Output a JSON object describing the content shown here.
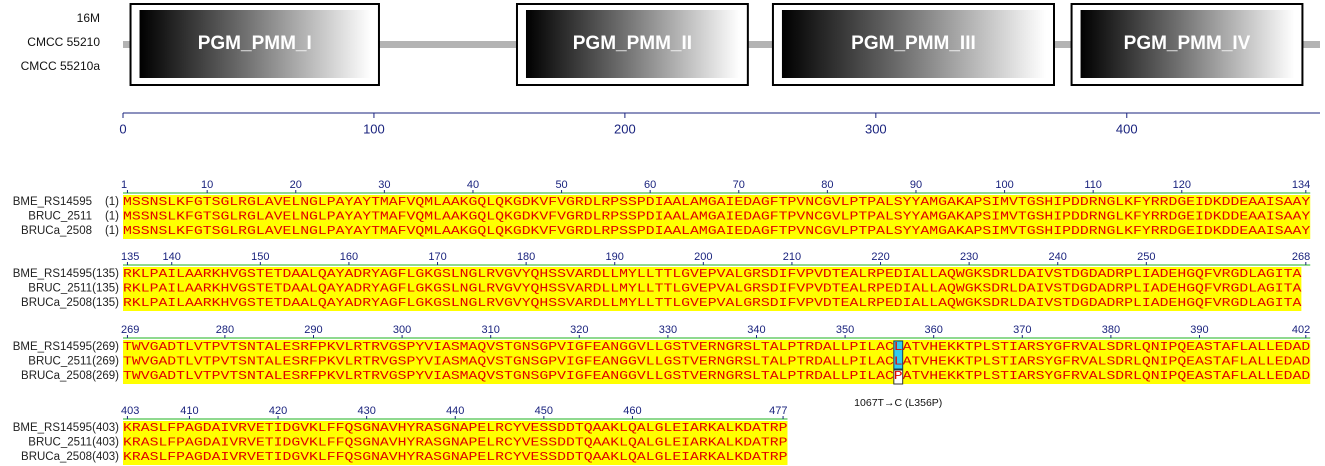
{
  "domain_map": {
    "strains": [
      "16M",
      "CMCC 55210",
      "CMCC 55210a"
    ],
    "domains": [
      {
        "label": "PGM_PMM_I",
        "start": 3,
        "end": 102
      },
      {
        "label": "PGM_PMM_II",
        "start": 157,
        "end": 249
      },
      {
        "label": "PGM_PMM_III",
        "start": 259,
        "end": 371
      },
      {
        "label": "PGM_PMM_IV",
        "start": 378,
        "end": 470
      }
    ],
    "axis_ticks": [
      0,
      100,
      200,
      300,
      400
    ]
  },
  "alignment": {
    "blocks": [
      {
        "ruler": [
          1,
          10,
          20,
          30,
          40,
          50,
          60,
          70,
          80,
          90,
          100,
          110,
          120,
          134
        ],
        "rows": [
          {
            "name": "BME_RS14595",
            "start": "(1)",
            "seq": "MSSNSLKFGTSGLRGLAVELNGLPAYAYTMAFVQMLAAKGQLQKGDKVFVGRDLRPSSPDIAALAMGAIEDAGFTPVNCGVLPTPALSYYAMGAKAPSIMVTGSHIPDDRNGLKFYRRDGEIDKDDEAAISAAY"
          },
          {
            "name": "BRUC_2511",
            "start": "(1)",
            "seq": "MSSNSLKFGTSGLRGLAVELNGLPAYAYTMAFVQMLAAKGQLQKGDKVFVGRDLRPSSPDIAALAMGAIEDAGFTPVNCGVLPTPALSYYAMGAKAPSIMVTGSHIPDDRNGLKFYRRDGEIDKDDEAAISAAY"
          },
          {
            "name": "BRUCa_2508",
            "start": "(1)",
            "seq": "MSSNSLKFGTSGLRGLAVELNGLPAYAYTMAFVQMLAAKGQLQKGDKVFVGRDLRPSSPDIAALAMGAIEDAGFTPVNCGVLPTPALSYYAMGAKAPSIMVTGSHIPDDRNGLKFYRRDGEIDKDDEAAISAAY"
          }
        ]
      },
      {
        "ruler": [
          135,
          140,
          150,
          160,
          170,
          180,
          190,
          200,
          210,
          220,
          230,
          240,
          250,
          268
        ],
        "rows": [
          {
            "name": "BME_RS14595",
            "start": "(135)",
            "seq": "RKLPAILAARKHVGSTETDAALQAYADRYAGFLGKGSLNGLRVGVYQHSSVARDLLMYLLTTLGVEPVALGRSDIFVPVDTEALRPEDIALLAQWGKSDRLDAIVSTDGDADRPLIADEHGQFVRGDLAGITA"
          },
          {
            "name": "BRUC_2511",
            "start": "(135)",
            "seq": "RKLPAILAARKHVGSTETDAALQAYADRYAGFLGKGSLNGLRVGVYQHSSVARDLLMYLLTTLGVEPVALGRSDIFVPVDTEALRPEDIALLAQWGKSDRLDAIVSTDGDADRPLIADEHGQFVRGDLAGITA"
          },
          {
            "name": "BRUCa_2508",
            "start": "(135)",
            "seq": "RKLPAILAARKHVGSTETDAALQAYADRYAGFLGKGSLNGLRVGVYQHSSVARDLLMYLLTTLGVEPVALGRSDIFVPVDTEALRPEDIALLAQWGKSDRLDAIVSTDGDADRPLIADEHGQFVRGDLAGITA"
          }
        ]
      },
      {
        "ruler": [
          269,
          280,
          290,
          300,
          310,
          320,
          330,
          340,
          350,
          360,
          370,
          380,
          390,
          402
        ],
        "rows": [
          {
            "name": "BME_RS14595",
            "start": "(269)",
            "seq": "TWVGADTLVTPVTSNTALESRFPKVLRTRVGSPYVIASMAQVSTGNSGPVIGFEANGGVLLGSTVERNGRSLTALPTRDALLPILACLATVHEKKTPLSTIARSYGFRVALSDRLQNIPQEASTAFLALLEDAD"
          },
          {
            "name": "BRUC_2511",
            "start": "(269)",
            "seq": "TWVGADTLVTPVTSNTALESRFPKVLRTRVGSPYVIASMAQVSTGNSGPVIGFEANGGVLLGSTVERNGRSLTALPTRDALLPILACLATVHEKKTPLSTIARSYGFRVALSDRLQNIPQEASTAFLALLEDAD"
          },
          {
            "name": "BRUCa_2508",
            "start": "(269)",
            "seq": "TWVGADTLVTPVTSNTALESRFPKVLRTRVGSPYVIASMAQVSTGNSGPVIGFEANGGVLLGSTVERNGRSLTALPTRDALLPILACPATVHEKKTPLSTIARSYGFRVALSDRLQNIPQEASTAFLALLEDAD"
          }
        ]
      },
      {
        "ruler": [
          403,
          410,
          420,
          430,
          440,
          450,
          460,
          477
        ],
        "rows": [
          {
            "name": "BME_RS14595",
            "start": "(403)",
            "seq": "KRASLFPAGDAIVRVETIDGVKLFFQSGNAVHYRASGNAPELRCYVESSDDTQAAKLQALGLEIARKALKDATRP"
          },
          {
            "name": "BRUC_2511",
            "start": "(403)",
            "seq": "KRASLFPAGDAIVRVETIDGVKLFFQSGNAVHYRASGNAPELRCYVESSDDTQAAKLQALGLEIARKALKDATRP"
          },
          {
            "name": "BRUCa_2508",
            "start": "(403)",
            "seq": "KRASLFPAGDAIVRVETIDGVKLFFQSGNAVHYRASGNAPELRCYVESSDDTQAAKLQALGLEIARKALKDATRP"
          }
        ]
      }
    ],
    "annotation": {
      "text": "1067T→C (L356P)",
      "position": 356,
      "block": 2
    }
  }
}
